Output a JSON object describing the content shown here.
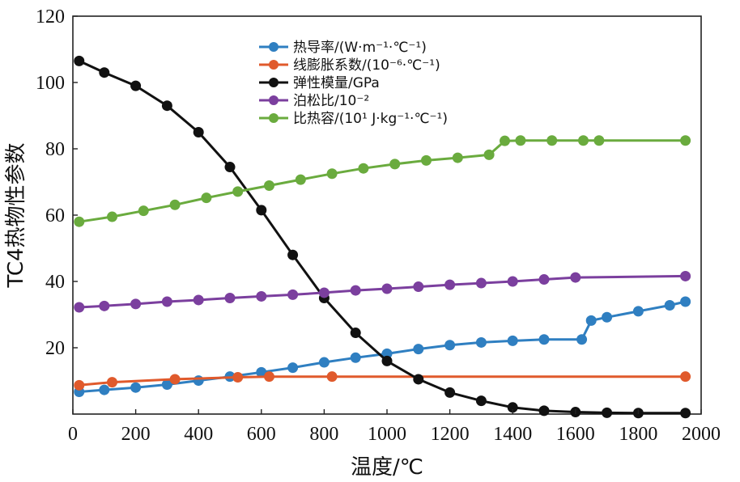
{
  "chart_data": {
    "type": "line",
    "xlabel": "温度/℃",
    "ylabel": "TC4热物性参数",
    "xlim": [
      0,
      2000
    ],
    "ylim": [
      0,
      120
    ],
    "x_ticks": [
      0,
      200,
      400,
      600,
      800,
      1000,
      1200,
      1400,
      1600,
      1800,
      2000
    ],
    "y_ticks": [
      20,
      40,
      60,
      80,
      100,
      120
    ],
    "legend_position": "top-center",
    "grid": false,
    "series": [
      {
        "name": "热导率/(W·m⁻¹·℃⁻¹)",
        "color": "#2f7fc1",
        "marker": "circle",
        "x": [
          20,
          100,
          200,
          300,
          400,
          500,
          600,
          700,
          800,
          900,
          1000,
          1100,
          1200,
          1300,
          1400,
          1500,
          1620,
          1650,
          1700,
          1800,
          1900,
          1950
        ],
        "y": [
          6.7,
          7.3,
          8.0,
          8.9,
          10.1,
          11.3,
          12.6,
          14.0,
          15.6,
          17.0,
          18.2,
          19.6,
          20.8,
          21.6,
          22.1,
          22.5,
          22.5,
          28.2,
          29.2,
          31.0,
          32.8,
          33.9
        ]
      },
      {
        "name": "线膨胀系数/(10⁻⁶·℃⁻¹)",
        "color": "#e05a2c",
        "marker": "circle",
        "x": [
          20,
          125,
          325,
          525,
          625,
          825,
          1950
        ],
        "y": [
          8.7,
          9.6,
          10.5,
          11.1,
          11.3,
          11.3,
          11.3
        ]
      },
      {
        "name": "弹性模量/GPa",
        "color": "#111111",
        "marker": "circle",
        "x": [
          20,
          100,
          200,
          300,
          400,
          500,
          600,
          700,
          800,
          900,
          1000,
          1100,
          1200,
          1300,
          1400,
          1500,
          1600,
          1700,
          1800,
          1950
        ],
        "y": [
          106.5,
          103.0,
          99.0,
          93.0,
          85.0,
          74.5,
          61.5,
          48.0,
          35.0,
          24.5,
          16.0,
          10.5,
          6.5,
          4.0,
          2.0,
          1.0,
          0.6,
          0.4,
          0.3,
          0.3
        ]
      },
      {
        "name": "泊松比/10⁻²",
        "color": "#7b3f9e",
        "marker": "circle",
        "x": [
          20,
          100,
          200,
          300,
          400,
          500,
          600,
          700,
          800,
          900,
          1000,
          1100,
          1200,
          1300,
          1400,
          1500,
          1600,
          1950
        ],
        "y": [
          32.2,
          32.6,
          33.2,
          33.9,
          34.4,
          35.0,
          35.5,
          36.0,
          36.6,
          37.3,
          37.8,
          38.4,
          39.0,
          39.5,
          40.0,
          40.6,
          41.2,
          41.6
        ]
      },
      {
        "name": "比热容/(10¹ J·kg⁻¹·℃⁻¹)",
        "color": "#6aab3e",
        "marker": "circle",
        "x": [
          20,
          125,
          225,
          325,
          425,
          525,
          625,
          725,
          825,
          925,
          1025,
          1125,
          1225,
          1325,
          1375,
          1425,
          1525,
          1625,
          1675,
          1950
        ],
        "y": [
          58.0,
          59.5,
          61.3,
          63.1,
          65.2,
          67.1,
          68.9,
          70.7,
          72.5,
          74.1,
          75.4,
          76.5,
          77.3,
          78.2,
          82.4,
          82.5,
          82.5,
          82.5,
          82.5,
          82.5
        ]
      }
    ]
  }
}
